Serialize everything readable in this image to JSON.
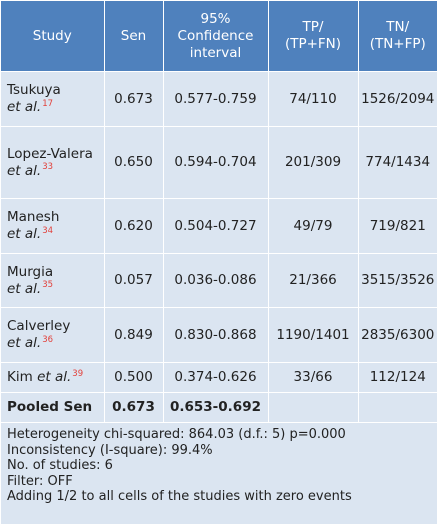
{
  "headers": {
    "study": "Study",
    "sen": "Sen",
    "ci": [
      "95%",
      "Confidence",
      "interval"
    ],
    "tp": [
      "TP/",
      "(TP+FN)"
    ],
    "tn": [
      "TN/",
      "(TN+FP)"
    ]
  },
  "rows": [
    {
      "name": "Tsukuya",
      "etal": "et al.",
      "ref": "17",
      "sen": "0.673",
      "ci": "0.577-0.759",
      "tp": "74/110",
      "tn": "1526/2094"
    },
    {
      "name": "Lopez-Valera",
      "etal": "et al.",
      "ref": "33",
      "sen": "0.650",
      "ci": "0.594-0.704",
      "tp": "201/309",
      "tn": "774/1434"
    },
    {
      "name": "Manesh",
      "etal": "et al.",
      "ref": "34",
      "sen": "0.620",
      "ci": "0.504-0.727",
      "tp": "49/79",
      "tn": "719/821"
    },
    {
      "name": "Murgia",
      "etal": "et al.",
      "ref": "35",
      "sen": "0.057",
      "ci": "0.036-0.086",
      "tp": "21/366",
      "tn": "3515/3526"
    },
    {
      "name": "Calverley",
      "etal": "et al.",
      "ref": "36",
      "sen": "0.849",
      "ci": "0.830-0.868",
      "tp": "1190/1401",
      "tn": "2835/6300"
    },
    {
      "name": "Kim",
      "etal": "et al.",
      "ref": "39",
      "sen": "0.500",
      "ci": "0.374-0.626",
      "tp": "33/66",
      "tn": "112/124"
    }
  ],
  "pooled": {
    "label": "Pooled Sen",
    "sen": "0.673",
    "ci": "0.653-0.692"
  },
  "footer": [
    "Heterogeneity chi-squared: 864.03 (d.f.: 5) p=0.000",
    "Inconsistency (I-square): 99.4%",
    "No. of studies: 6",
    "Filter: OFF",
    "Adding 1/2 to all cells of the studies with zero events"
  ],
  "colors": {
    "header_bg": "#4f81bd",
    "body_bg": "#dbe5f1",
    "ref": "#e2413b"
  }
}
